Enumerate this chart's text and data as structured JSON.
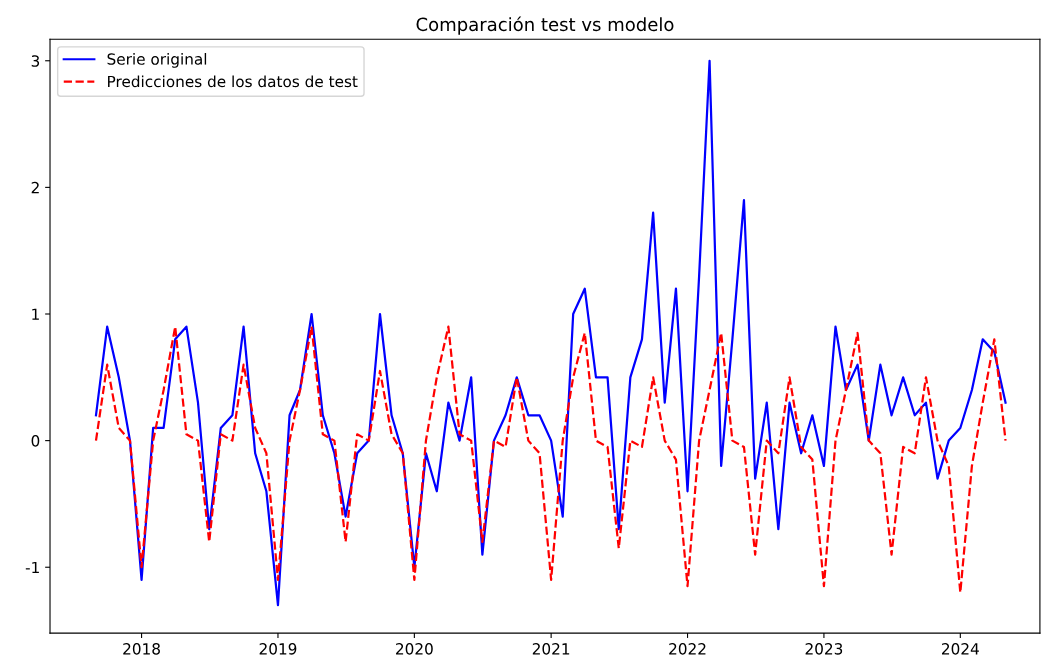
{
  "chart_data": {
    "type": "line",
    "title": "Comparación test vs modelo",
    "x": [
      "2017-09",
      "2017-10",
      "2017-11",
      "2017-12",
      "2018-01",
      "2018-02",
      "2018-03",
      "2018-04",
      "2018-05",
      "2018-06",
      "2018-07",
      "2018-08",
      "2018-09",
      "2018-10",
      "2018-11",
      "2018-12",
      "2019-01",
      "2019-02",
      "2019-03",
      "2019-04",
      "2019-05",
      "2019-06",
      "2019-07",
      "2019-08",
      "2019-09",
      "2019-10",
      "2019-11",
      "2019-12",
      "2020-01",
      "2020-02",
      "2020-03",
      "2020-04",
      "2020-05",
      "2020-06",
      "2020-07",
      "2020-08",
      "2020-09",
      "2020-10",
      "2020-11",
      "2020-12",
      "2021-01",
      "2021-02",
      "2021-03",
      "2021-04",
      "2021-05",
      "2021-06",
      "2021-07",
      "2021-08",
      "2021-09",
      "2021-10",
      "2021-11",
      "2021-12",
      "2022-01",
      "2022-02",
      "2022-03",
      "2022-04",
      "2022-05",
      "2022-06",
      "2022-07",
      "2022-08",
      "2022-09",
      "2022-10",
      "2022-11",
      "2022-12",
      "2023-01",
      "2023-02",
      "2023-03",
      "2023-04",
      "2023-05",
      "2023-06",
      "2023-07",
      "2023-08",
      "2023-09",
      "2023-10",
      "2023-11",
      "2023-12",
      "2024-01",
      "2024-02",
      "2024-03",
      "2024-04",
      "2024-05"
    ],
    "series": [
      {
        "name": "Serie original",
        "color": "#0000ff",
        "line_style": "solid",
        "values": [
          0.2,
          0.9,
          0.5,
          0.0,
          -1.1,
          0.1,
          0.1,
          0.8,
          0.9,
          0.3,
          -0.7,
          0.1,
          0.2,
          0.9,
          -0.1,
          -0.4,
          -1.3,
          0.2,
          0.4,
          1.0,
          0.2,
          -0.1,
          -0.6,
          -0.1,
          0.0,
          1.0,
          0.2,
          -0.1,
          -1.0,
          -0.1,
          -0.4,
          0.3,
          0.0,
          0.5,
          -0.9,
          0.0,
          0.2,
          0.5,
          0.2,
          0.2,
          0.0,
          -0.6,
          1.0,
          1.2,
          0.5,
          0.5,
          -0.7,
          0.5,
          0.8,
          1.8,
          0.3,
          1.2,
          -0.4,
          1.3,
          3.0,
          -0.2,
          0.8,
          1.9,
          -0.3,
          0.3,
          -0.7,
          0.3,
          -0.1,
          0.2,
          -0.2,
          0.9,
          0.4,
          0.6,
          0.0,
          0.6,
          0.2,
          0.5,
          0.2,
          0.3,
          -0.3,
          0.0,
          0.1,
          0.4,
          0.8,
          0.7,
          0.3
        ]
      },
      {
        "name": "Predicciones de los datos de test",
        "color": "#ff0000",
        "line_style": "dashed",
        "values": [
          0.0,
          0.6,
          0.1,
          0.0,
          -1.0,
          0.0,
          0.4,
          0.9,
          0.05,
          0.0,
          -0.8,
          0.05,
          0.0,
          0.6,
          0.1,
          -0.1,
          -1.1,
          0.0,
          0.4,
          0.9,
          0.05,
          0.0,
          -0.8,
          0.05,
          0.0,
          0.55,
          0.05,
          -0.1,
          -1.1,
          0.0,
          0.5,
          0.9,
          0.05,
          0.0,
          -0.8,
          0.0,
          -0.05,
          0.5,
          0.0,
          -0.1,
          -1.1,
          0.0,
          0.5,
          0.85,
          0.0,
          -0.05,
          -0.85,
          0.0,
          -0.05,
          0.5,
          0.0,
          -0.15,
          -1.15,
          0.0,
          0.4,
          0.85,
          0.0,
          -0.05,
          -0.9,
          0.0,
          -0.1,
          0.5,
          -0.05,
          -0.15,
          -1.15,
          0.0,
          0.4,
          0.85,
          0.0,
          -0.1,
          -0.9,
          -0.05,
          -0.1,
          0.5,
          0.0,
          -0.2,
          -1.2,
          -0.2,
          0.3,
          0.8,
          0.0
        ]
      }
    ],
    "xlim": [
      "2017-05",
      "2024-08"
    ],
    "xticks": [
      "2018",
      "2019",
      "2020",
      "2021",
      "2022",
      "2023",
      "2024"
    ],
    "ylim": [
      -1.52,
      3.17
    ],
    "yticks": [
      -1,
      0,
      1,
      2,
      3
    ],
    "legend": "top left",
    "grid": false,
    "marker": "none"
  }
}
